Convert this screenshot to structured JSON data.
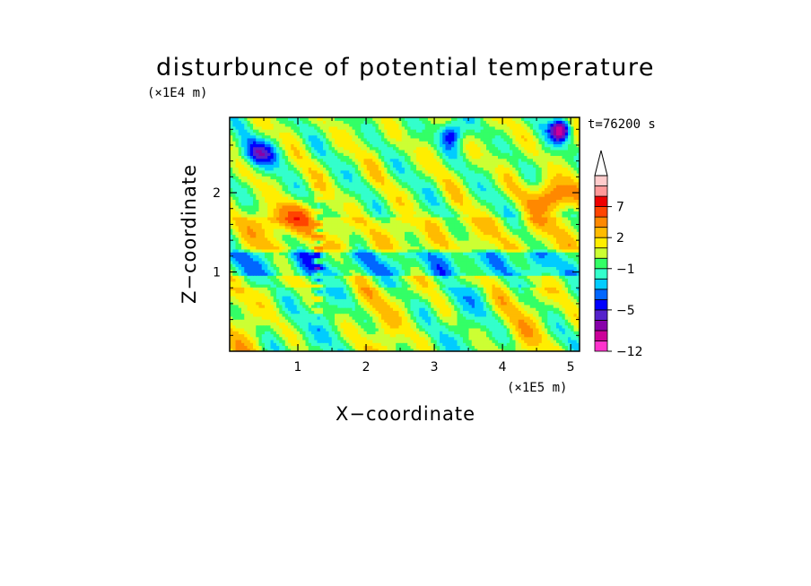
{
  "chart_data": {
    "type": "heatmap",
    "title": "disturbunce of potential temperature",
    "xlabel": "X−coordinate",
    "ylabel": "Z−coordinate",
    "x_unit": "(×1E5 m)",
    "y_unit": "(×1E4 m)",
    "time_label": "t=76200 s",
    "xlim": [
      0,
      5.13
    ],
    "ylim": [
      0,
      2.95
    ],
    "x_ticks": [
      1,
      2,
      3,
      4,
      5
    ],
    "y_ticks": [
      1,
      2
    ],
    "colorbar": {
      "levels": [
        -12,
        -10,
        -8,
        -6,
        -5,
        -4,
        -3,
        -2,
        -1,
        0,
        1,
        2,
        3,
        5,
        7,
        9,
        11,
        13
      ],
      "labeled_ticks": [
        {
          "value": 7,
          "label": "7"
        },
        {
          "value": 2,
          "label": "2"
        },
        {
          "value": -1,
          "label": "−1"
        },
        {
          "value": -5,
          "label": "−5"
        },
        {
          "value": -12,
          "label": "−12"
        }
      ],
      "colors": [
        "#ff33cc",
        "#cc0099",
        "#8800aa",
        "#5522cc",
        "#0000ff",
        "#0066ff",
        "#00ccff",
        "#33ffcc",
        "#33ff66",
        "#ccff33",
        "#ffee00",
        "#ffbb00",
        "#ff8800",
        "#ff4400",
        "#ee0000",
        "#ff9999",
        "#ffcccc"
      ],
      "extend": "max"
    },
    "grid": false,
    "legend": "colorbar-right"
  }
}
